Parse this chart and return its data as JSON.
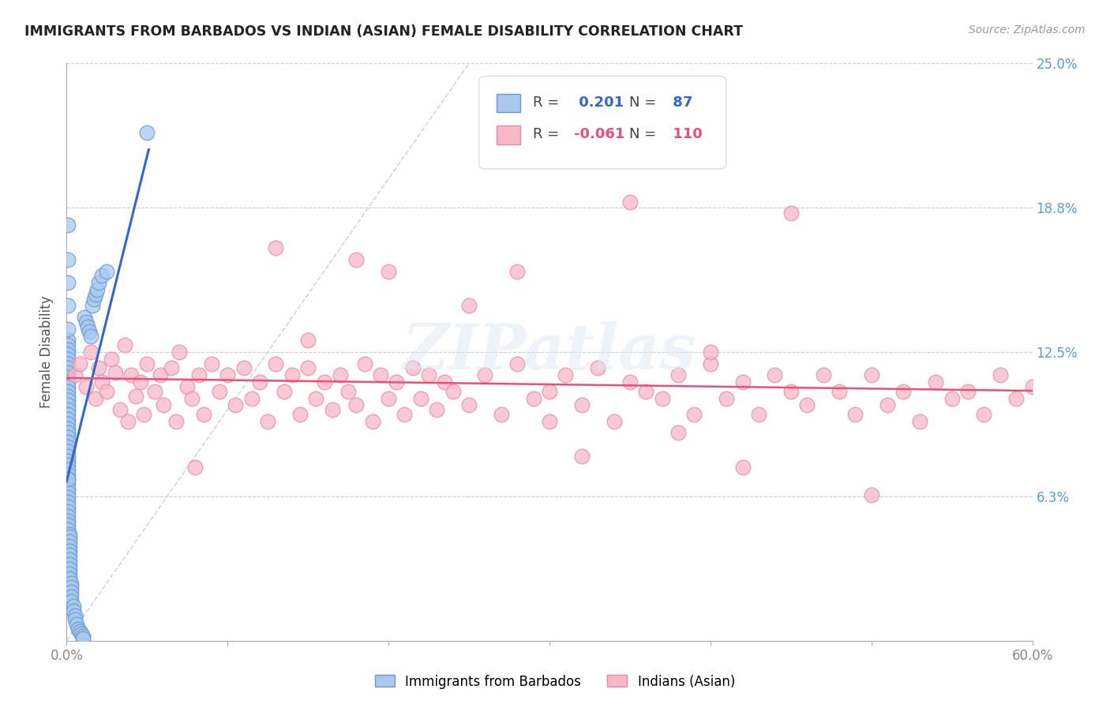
{
  "title": "IMMIGRANTS FROM BARBADOS VS INDIAN (ASIAN) FEMALE DISABILITY CORRELATION CHART",
  "source": "Source: ZipAtlas.com",
  "ylabel": "Female Disability",
  "x_min": 0.0,
  "x_max": 0.6,
  "y_min": 0.0,
  "y_max": 0.25,
  "r_barbados": 0.201,
  "n_barbados": 87,
  "r_indian": -0.061,
  "n_indian": 110,
  "color_barbados_fill": "#a8c8f0",
  "color_barbados_edge": "#6699cc",
  "color_indian_fill": "#f8b8c8",
  "color_indian_edge": "#e888a8",
  "color_barbados_line": "#3366cc",
  "color_indian_line": "#e8507a",
  "color_diagonal": "#c8d8e8",
  "watermark_text": "ZIPatlas",
  "barbados_x": [
    0.001,
    0.001,
    0.001,
    0.001,
    0.001,
    0.001,
    0.001,
    0.001,
    0.001,
    0.001,
    0.001,
    0.001,
    0.001,
    0.001,
    0.001,
    0.001,
    0.001,
    0.001,
    0.001,
    0.001,
    0.001,
    0.001,
    0.001,
    0.001,
    0.001,
    0.001,
    0.001,
    0.001,
    0.001,
    0.001,
    0.001,
    0.001,
    0.001,
    0.001,
    0.001,
    0.001,
    0.001,
    0.001,
    0.001,
    0.001,
    0.001,
    0.001,
    0.002,
    0.002,
    0.002,
    0.002,
    0.002,
    0.002,
    0.002,
    0.002,
    0.002,
    0.002,
    0.002,
    0.003,
    0.003,
    0.003,
    0.003,
    0.003,
    0.004,
    0.004,
    0.005,
    0.005,
    0.006,
    0.007,
    0.008,
    0.009,
    0.01,
    0.01,
    0.011,
    0.012,
    0.013,
    0.014,
    0.015,
    0.016,
    0.017,
    0.018,
    0.019,
    0.02,
    0.022,
    0.025,
    0.05,
    0.001,
    0.001,
    0.001,
    0.001,
    0.001,
    0.001
  ],
  "barbados_y": [
    0.13,
    0.128,
    0.126,
    0.124,
    0.122,
    0.12,
    0.118,
    0.116,
    0.114,
    0.112,
    0.11,
    0.108,
    0.106,
    0.104,
    0.102,
    0.1,
    0.098,
    0.096,
    0.094,
    0.092,
    0.09,
    0.088,
    0.086,
    0.084,
    0.082,
    0.08,
    0.078,
    0.076,
    0.074,
    0.072,
    0.07,
    0.068,
    0.066,
    0.064,
    0.062,
    0.06,
    0.058,
    0.056,
    0.054,
    0.052,
    0.05,
    0.048,
    0.046,
    0.045,
    0.043,
    0.041,
    0.039,
    0.037,
    0.035,
    0.033,
    0.031,
    0.029,
    0.027,
    0.025,
    0.023,
    0.021,
    0.019,
    0.017,
    0.015,
    0.013,
    0.011,
    0.009,
    0.007,
    0.005,
    0.004,
    0.003,
    0.002,
    0.001,
    0.14,
    0.138,
    0.136,
    0.134,
    0.132,
    0.145,
    0.148,
    0.15,
    0.152,
    0.155,
    0.158,
    0.16,
    0.22,
    0.18,
    0.165,
    0.155,
    0.145,
    0.135,
    0.07
  ],
  "indian_x": [
    0.005,
    0.008,
    0.012,
    0.015,
    0.018,
    0.02,
    0.022,
    0.025,
    0.028,
    0.03,
    0.033,
    0.036,
    0.038,
    0.04,
    0.043,
    0.046,
    0.048,
    0.05,
    0.055,
    0.058,
    0.06,
    0.065,
    0.068,
    0.07,
    0.075,
    0.078,
    0.082,
    0.085,
    0.09,
    0.095,
    0.1,
    0.105,
    0.11,
    0.115,
    0.12,
    0.125,
    0.13,
    0.135,
    0.14,
    0.145,
    0.15,
    0.155,
    0.16,
    0.165,
    0.17,
    0.175,
    0.18,
    0.185,
    0.19,
    0.195,
    0.2,
    0.205,
    0.21,
    0.215,
    0.22,
    0.225,
    0.23,
    0.235,
    0.24,
    0.25,
    0.26,
    0.27,
    0.28,
    0.29,
    0.3,
    0.31,
    0.32,
    0.33,
    0.34,
    0.35,
    0.36,
    0.37,
    0.38,
    0.39,
    0.4,
    0.41,
    0.42,
    0.43,
    0.44,
    0.45,
    0.46,
    0.47,
    0.48,
    0.49,
    0.5,
    0.51,
    0.52,
    0.53,
    0.54,
    0.55,
    0.56,
    0.57,
    0.58,
    0.59,
    0.6,
    0.35,
    0.4,
    0.45,
    0.2,
    0.15,
    0.28,
    0.32,
    0.38,
    0.25,
    0.5,
    0.42,
    0.3,
    0.18,
    0.13,
    0.08
  ],
  "indian_y": [
    0.115,
    0.12,
    0.11,
    0.125,
    0.105,
    0.118,
    0.112,
    0.108,
    0.122,
    0.116,
    0.1,
    0.128,
    0.095,
    0.115,
    0.106,
    0.112,
    0.098,
    0.12,
    0.108,
    0.115,
    0.102,
    0.118,
    0.095,
    0.125,
    0.11,
    0.105,
    0.115,
    0.098,
    0.12,
    0.108,
    0.115,
    0.102,
    0.118,
    0.105,
    0.112,
    0.095,
    0.12,
    0.108,
    0.115,
    0.098,
    0.118,
    0.105,
    0.112,
    0.1,
    0.115,
    0.108,
    0.102,
    0.12,
    0.095,
    0.115,
    0.105,
    0.112,
    0.098,
    0.118,
    0.105,
    0.115,
    0.1,
    0.112,
    0.108,
    0.102,
    0.115,
    0.098,
    0.12,
    0.105,
    0.108,
    0.115,
    0.102,
    0.118,
    0.095,
    0.112,
    0.108,
    0.105,
    0.115,
    0.098,
    0.12,
    0.105,
    0.112,
    0.098,
    0.115,
    0.108,
    0.102,
    0.115,
    0.108,
    0.098,
    0.115,
    0.102,
    0.108,
    0.095,
    0.112,
    0.105,
    0.108,
    0.098,
    0.115,
    0.105,
    0.11,
    0.19,
    0.125,
    0.185,
    0.16,
    0.13,
    0.16,
    0.08,
    0.09,
    0.145,
    0.063,
    0.075,
    0.095,
    0.165,
    0.17,
    0.075
  ]
}
